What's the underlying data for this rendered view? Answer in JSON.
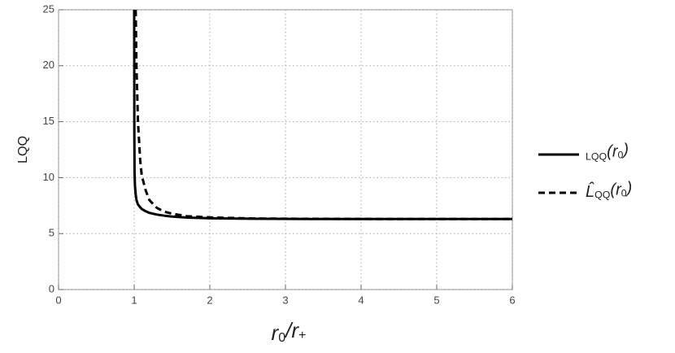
{
  "chart_data": {
    "type": "line",
    "xlabel": "r0/r+",
    "ylabel": "LQQ",
    "x": [
      1.0,
      1.002,
      1.005,
      1.01,
      1.02,
      1.03,
      1.05,
      1.08,
      1.1,
      1.15,
      1.2,
      1.3,
      1.4,
      1.5,
      1.7,
      2.0,
      2.5,
      3.0,
      4.0,
      5.0,
      6.0
    ],
    "series": [
      {
        "name": "LQQ(r0)",
        "color": "#000000",
        "dash": "solid",
        "values": [
          25,
          14,
          10.5,
          9.3,
          8.5,
          8.0,
          7.6,
          7.35,
          7.2,
          7.0,
          6.85,
          6.7,
          6.6,
          6.52,
          6.43,
          6.37,
          6.33,
          6.31,
          6.3,
          6.3,
          6.3
        ]
      },
      {
        "name": "L̂QQ(r0)",
        "color": "#000000",
        "dash": "dashed",
        "values": [
          null,
          null,
          null,
          null,
          25,
          20,
          15,
          11.5,
          10.2,
          8.9,
          8.0,
          7.3,
          6.95,
          6.78,
          6.55,
          6.45,
          6.36,
          6.33,
          6.31,
          6.3,
          6.3
        ]
      }
    ],
    "xlim": [
      0,
      6
    ],
    "ylim": [
      0,
      25
    ],
    "xticks": [
      0,
      1,
      2,
      3,
      4,
      5,
      6
    ],
    "yticks": [
      0,
      5,
      10,
      15,
      20,
      25
    ],
    "grid": true,
    "legend": "right"
  }
}
